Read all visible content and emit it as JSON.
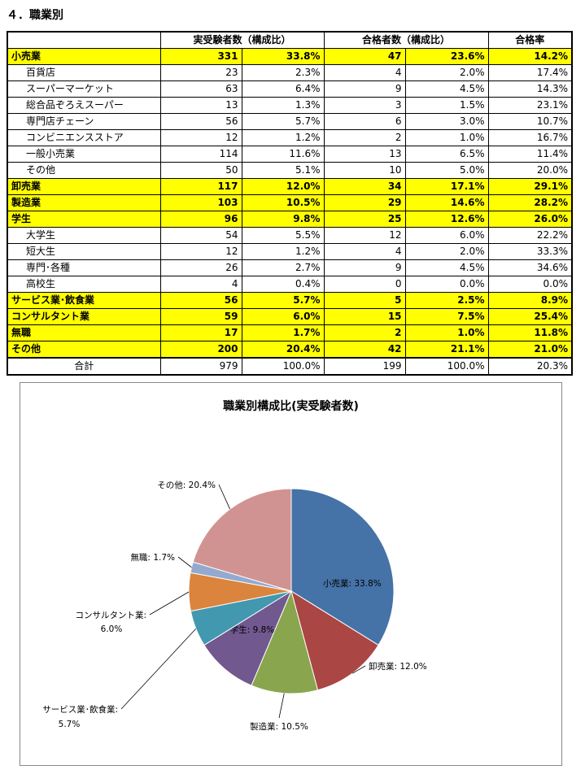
{
  "section_title": "４．職業別",
  "table": {
    "headers": [
      "",
      "実受験者数（構成比）",
      "合格者数（構成比）",
      "合格率"
    ],
    "rows": [
      {
        "kind": "cat",
        "label": "小売業",
        "exam_n": "331",
        "exam_pct": "33.8%",
        "pass_n": "47",
        "pass_pct": "23.6%",
        "rate": "14.2%"
      },
      {
        "kind": "sub",
        "label": "百貨店",
        "exam_n": "23",
        "exam_pct": "2.3%",
        "pass_n": "4",
        "pass_pct": "2.0%",
        "rate": "17.4%"
      },
      {
        "kind": "sub",
        "label": "スーパーマーケット",
        "exam_n": "63",
        "exam_pct": "6.4%",
        "pass_n": "9",
        "pass_pct": "4.5%",
        "rate": "14.3%"
      },
      {
        "kind": "sub",
        "label": "総合品ぞろえスーパー",
        "exam_n": "13",
        "exam_pct": "1.3%",
        "pass_n": "3",
        "pass_pct": "1.5%",
        "rate": "23.1%"
      },
      {
        "kind": "sub",
        "label": "専門店チェーン",
        "exam_n": "56",
        "exam_pct": "5.7%",
        "pass_n": "6",
        "pass_pct": "3.0%",
        "rate": "10.7%"
      },
      {
        "kind": "sub",
        "label": "コンビニエンスストア",
        "exam_n": "12",
        "exam_pct": "1.2%",
        "pass_n": "2",
        "pass_pct": "1.0%",
        "rate": "16.7%"
      },
      {
        "kind": "sub",
        "label": "一般小売業",
        "exam_n": "114",
        "exam_pct": "11.6%",
        "pass_n": "13",
        "pass_pct": "6.5%",
        "rate": "11.4%"
      },
      {
        "kind": "sub",
        "label": "その他",
        "exam_n": "50",
        "exam_pct": "5.1%",
        "pass_n": "10",
        "pass_pct": "5.0%",
        "rate": "20.0%"
      },
      {
        "kind": "cat",
        "label": "卸売業",
        "exam_n": "117",
        "exam_pct": "12.0%",
        "pass_n": "34",
        "pass_pct": "17.1%",
        "rate": "29.1%"
      },
      {
        "kind": "cat",
        "label": "製造業",
        "exam_n": "103",
        "exam_pct": "10.5%",
        "pass_n": "29",
        "pass_pct": "14.6%",
        "rate": "28.2%"
      },
      {
        "kind": "cat",
        "label": "学生",
        "exam_n": "96",
        "exam_pct": "9.8%",
        "pass_n": "25",
        "pass_pct": "12.6%",
        "rate": "26.0%"
      },
      {
        "kind": "sub",
        "label": "大学生",
        "exam_n": "54",
        "exam_pct": "5.5%",
        "pass_n": "12",
        "pass_pct": "6.0%",
        "rate": "22.2%"
      },
      {
        "kind": "sub",
        "label": "短大生",
        "exam_n": "12",
        "exam_pct": "1.2%",
        "pass_n": "4",
        "pass_pct": "2.0%",
        "rate": "33.3%"
      },
      {
        "kind": "sub",
        "label": "専門･各種",
        "exam_n": "26",
        "exam_pct": "2.7%",
        "pass_n": "9",
        "pass_pct": "4.5%",
        "rate": "34.6%"
      },
      {
        "kind": "sub",
        "label": "高校生",
        "exam_n": "4",
        "exam_pct": "0.4%",
        "pass_n": "0",
        "pass_pct": "0.0%",
        "rate": "0.0%"
      },
      {
        "kind": "cat",
        "label": "サービス業･飲食業",
        "exam_n": "56",
        "exam_pct": "5.7%",
        "pass_n": "5",
        "pass_pct": "2.5%",
        "rate": "8.9%"
      },
      {
        "kind": "cat",
        "label": "コンサルタント業",
        "exam_n": "59",
        "exam_pct": "6.0%",
        "pass_n": "15",
        "pass_pct": "7.5%",
        "rate": "25.4%"
      },
      {
        "kind": "cat",
        "label": "無職",
        "exam_n": "17",
        "exam_pct": "1.7%",
        "pass_n": "2",
        "pass_pct": "1.0%",
        "rate": "11.8%"
      },
      {
        "kind": "cat",
        "label": "その他",
        "exam_n": "200",
        "exam_pct": "20.4%",
        "pass_n": "42",
        "pass_pct": "21.1%",
        "rate": "21.0%"
      },
      {
        "kind": "total",
        "label": "合計",
        "exam_n": "979",
        "exam_pct": "100.0%",
        "pass_n": "199",
        "pass_pct": "100.0%",
        "rate": "20.3%"
      }
    ]
  },
  "chart_data": {
    "type": "pie",
    "title": "職業別構成比(実受験者数)",
    "slices": [
      {
        "label": "小売業",
        "value": 33.8,
        "display": "小売業: 33.8%",
        "color": "#4572a7"
      },
      {
        "label": "卸売業",
        "value": 12.0,
        "display": "卸売業: 12.0%",
        "color": "#aa4643"
      },
      {
        "label": "製造業",
        "value": 10.5,
        "display": "製造業: 10.5%",
        "color": "#89a54e"
      },
      {
        "label": "学生",
        "value": 9.8,
        "display": "学生: 9.8%",
        "color": "#71588f"
      },
      {
        "label": "サービス業･飲食業",
        "value": 5.7,
        "display_line1": "サービス業･飲食業:",
        "display_line2": "5.7%",
        "color": "#4198af"
      },
      {
        "label": "コンサルタント業",
        "value": 6.0,
        "display_line1": "コンサルタント業:",
        "display_line2": "6.0%",
        "color": "#db843d"
      },
      {
        "label": "無職",
        "value": 1.7,
        "display": "無職: 1.7%",
        "color": "#93a9cf"
      },
      {
        "label": "その他",
        "value": 20.4,
        "display": "その他: 20.4%",
        "color": "#d19392"
      }
    ]
  }
}
